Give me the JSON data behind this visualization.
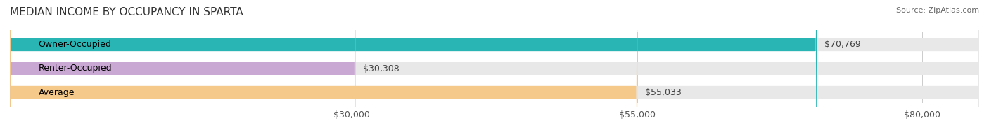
{
  "title": "MEDIAN INCOME BY OCCUPANCY IN SPARTA",
  "source": "Source: ZipAtlas.com",
  "categories": [
    "Owner-Occupied",
    "Renter-Occupied",
    "Average"
  ],
  "values": [
    70769,
    30308,
    55033
  ],
  "labels": [
    "$70,769",
    "$30,308",
    "$55,033"
  ],
  "bar_colors": [
    "#2ab5b5",
    "#c9a8d4",
    "#f5c98a"
  ],
  "track_color": "#e8e8e8",
  "xlim": [
    0,
    85000
  ],
  "xticks": [
    30000,
    55000,
    80000
  ],
  "xticklabels": [
    "$30,000",
    "$55,000",
    "$80,000"
  ],
  "title_fontsize": 11,
  "label_fontsize": 9,
  "source_fontsize": 8,
  "background_color": "#ffffff"
}
